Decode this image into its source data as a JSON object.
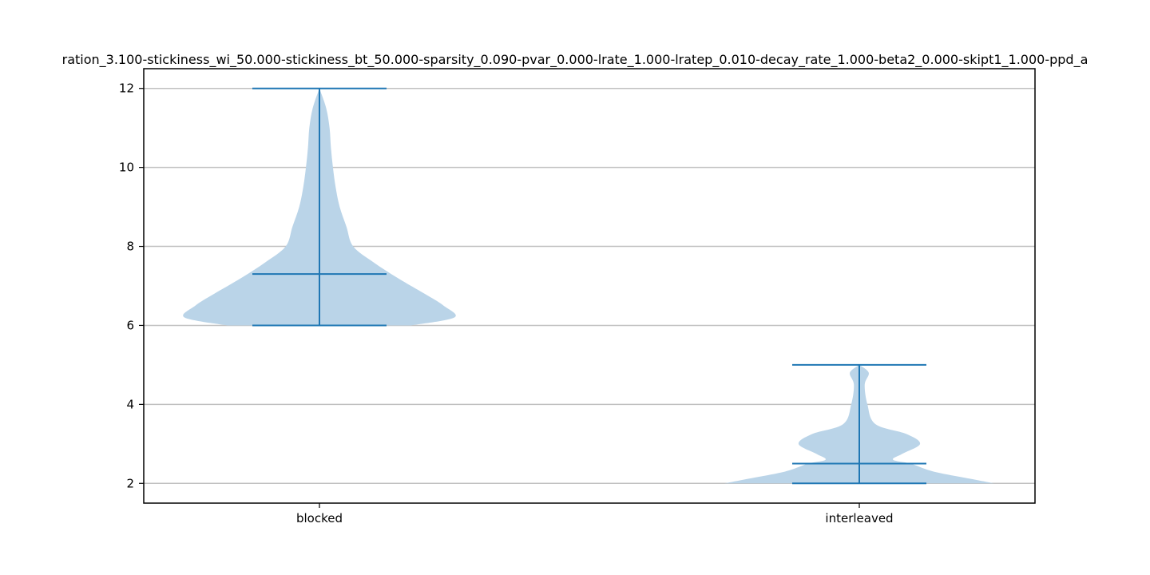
{
  "chart_data": {
    "type": "violin",
    "title": "ration_3.100-stickiness_wi_50.000-stickiness_bt_50.000-sparsity_0.090-pvar_0.000-lrate_1.000-lratep_0.010-decay_rate_1.000-beta2_0.000-skipt1_1.000-ppd_a",
    "xlabel": "",
    "ylabel": "",
    "categories": [
      "blocked",
      "interleaved"
    ],
    "yticks": [
      2,
      4,
      6,
      8,
      10,
      12
    ],
    "ytick_labels": [
      "2",
      "4",
      "6",
      "8",
      "10",
      "12"
    ],
    "ylim": [
      1.5,
      12.5
    ],
    "grid": "y",
    "series": [
      {
        "category": "blocked",
        "min": 6.0,
        "median": 7.3,
        "max": 12.0,
        "density": [
          [
            6.0,
            0.68
          ],
          [
            6.2,
            1.0
          ],
          [
            6.5,
            0.92
          ],
          [
            6.8,
            0.78
          ],
          [
            7.2,
            0.58
          ],
          [
            7.6,
            0.4
          ],
          [
            8.0,
            0.25
          ],
          [
            8.5,
            0.2
          ],
          [
            9.0,
            0.15
          ],
          [
            9.5,
            0.12
          ],
          [
            10.0,
            0.1
          ],
          [
            10.5,
            0.085
          ],
          [
            11.0,
            0.075
          ],
          [
            11.5,
            0.05
          ],
          [
            12.0,
            0.0
          ]
        ]
      },
      {
        "category": "interleaved",
        "min": 2.0,
        "median": 2.5,
        "max": 5.0,
        "density": [
          [
            2.0,
            1.0
          ],
          [
            2.1,
            0.85
          ],
          [
            2.3,
            0.55
          ],
          [
            2.5,
            0.38
          ],
          [
            2.6,
            0.25
          ],
          [
            2.75,
            0.32
          ],
          [
            3.0,
            0.45
          ],
          [
            3.25,
            0.35
          ],
          [
            3.5,
            0.12
          ],
          [
            4.0,
            0.06
          ],
          [
            4.5,
            0.04
          ],
          [
            4.8,
            0.07
          ],
          [
            5.0,
            0.0
          ]
        ]
      }
    ],
    "colors": {
      "violin_fill": "#bad4e8",
      "line": "#1f77b4",
      "grid": "#c0c0c0",
      "axis": "#000000"
    }
  }
}
